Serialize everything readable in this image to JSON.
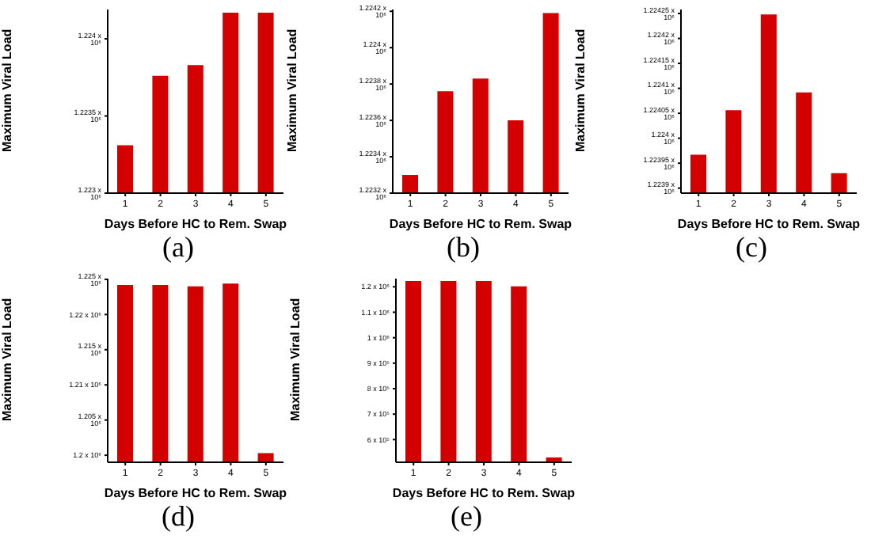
{
  "chart_data": [
    {
      "type": "bar",
      "title": "(a)",
      "xlabel": "Days Before HC to Rem. Swap",
      "ylabel": "Maximum Viral Load",
      "categories": [
        "1",
        "2",
        "3",
        "4",
        "5"
      ],
      "color": "#d40000",
      "values": [
        1223310,
        1223760,
        1223830,
        1224170,
        1224170
      ],
      "ylim": [
        1223000,
        1224190
      ],
      "yticks": [
        {
          "value": 1223000,
          "label": "1.223 x 10⁶"
        },
        {
          "value": 1223500,
          "label": "1.2235 x 10⁶"
        },
        {
          "value": 1224000,
          "label": "1.224 x 10⁶"
        }
      ],
      "grid": false
    },
    {
      "type": "bar",
      "title": "(b)",
      "xlabel": "Days Before HC to Rem. Swap",
      "ylabel": "Maximum Viral Load",
      "categories": [
        "1",
        "2",
        "3",
        "4",
        "5"
      ],
      "color": "#d40000",
      "values": [
        1223300,
        1223760,
        1223830,
        1223600,
        1224190
      ],
      "ylim": [
        1223200,
        1224210
      ],
      "yticks": [
        {
          "value": 1223200,
          "label": "1.2232 x 10⁶"
        },
        {
          "value": 1223400,
          "label": "1.2234 x 10⁶"
        },
        {
          "value": 1223600,
          "label": "1.2236 x 10⁶"
        },
        {
          "value": 1223800,
          "label": "1.2238 x 10⁶"
        },
        {
          "value": 1224000,
          "label": "1.224 x 10⁶"
        },
        {
          "value": 1224200,
          "label": "1.2242 x 10⁶"
        }
      ],
      "grid": false
    },
    {
      "type": "bar",
      "title": "(c)",
      "xlabel": "Days Before HC to Rem. Swap",
      "ylabel": "Maximum Viral Load",
      "categories": [
        "1",
        "2",
        "3",
        "4",
        "5"
      ],
      "color": "#d40000",
      "values": [
        1223967,
        1224056,
        1224248,
        1224092,
        1223930
      ],
      "ylim": [
        1223890,
        1224258
      ],
      "yticks": [
        {
          "value": 1223900,
          "label": "1.2239 x 10⁶"
        },
        {
          "value": 1223950,
          "label": "1.22395 x 10⁶"
        },
        {
          "value": 1224000,
          "label": "1.224 x 10⁶"
        },
        {
          "value": 1224050,
          "label": "1.22405 x 10⁶"
        },
        {
          "value": 1224100,
          "label": "1.2241 x 10⁶"
        },
        {
          "value": 1224150,
          "label": "1.22415 x 10⁶"
        },
        {
          "value": 1224200,
          "label": "1.2242 x 10⁶"
        },
        {
          "value": 1224250,
          "label": "1.22425 x 10⁶"
        }
      ],
      "grid": false
    },
    {
      "type": "bar",
      "title": "(d)",
      "xlabel": "Days Before HC to Rem. Swap",
      "ylabel": "Maximum Viral Load",
      "categories": [
        "1",
        "2",
        "3",
        "4",
        "5"
      ],
      "color": "#d40000",
      "values": [
        1224200,
        1224200,
        1224000,
        1224400,
        1200300
      ],
      "ylim": [
        1199000,
        1225100
      ],
      "yticks": [
        {
          "value": 1200000,
          "label": "1.2 x 10⁶"
        },
        {
          "value": 1205000,
          "label": "1.205 x 10⁶"
        },
        {
          "value": 1210000,
          "label": "1.21 x 10⁶"
        },
        {
          "value": 1215000,
          "label": "1.215 x 10⁶"
        },
        {
          "value": 1220000,
          "label": "1.22 x 10⁶"
        },
        {
          "value": 1225000,
          "label": "1.225 x 10⁶"
        }
      ],
      "grid": false
    },
    {
      "type": "bar",
      "title": "(e)",
      "xlabel": "Days Before HC to Rem. Swap",
      "ylabel": "Maximum Viral Load",
      "categories": [
        "1",
        "2",
        "3",
        "4",
        "5"
      ],
      "color": "#d40000",
      "values": [
        1223000,
        1223000,
        1223000,
        1202000,
        530000
      ],
      "ylim": [
        511000,
        1232000
      ],
      "yticks": [
        {
          "value": 600000,
          "label": "6 x 10⁵"
        },
        {
          "value": 700000,
          "label": "7 x 10⁵"
        },
        {
          "value": 800000,
          "label": "8 x 10⁵"
        },
        {
          "value": 900000,
          "label": "9 x 10⁵"
        },
        {
          "value": 1000000,
          "label": "1 x 10⁶"
        },
        {
          "value": 1100000,
          "label": "1.1 x 10⁶"
        },
        {
          "value": 1200000,
          "label": "1.2 x 10⁶"
        }
      ],
      "grid": false
    }
  ]
}
